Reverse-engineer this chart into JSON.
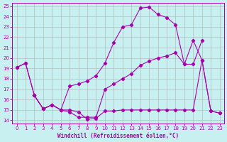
{
  "xlabel": "Windchill (Refroidissement éolien,°C)",
  "bg_color": "#c8f0f0",
  "line_color": "#aa00aa",
  "grid_color": "#b0b0b0",
  "xlim": [
    -0.5,
    23.5
  ],
  "ylim": [
    13.7,
    25.3
  ],
  "yticks": [
    14,
    15,
    16,
    17,
    18,
    19,
    20,
    21,
    22,
    23,
    24,
    25
  ],
  "xticks": [
    0,
    1,
    2,
    3,
    4,
    5,
    6,
    7,
    8,
    9,
    10,
    11,
    12,
    13,
    14,
    15,
    16,
    17,
    18,
    19,
    20,
    21,
    22,
    23
  ],
  "line1_x": [
    0,
    1,
    2,
    3,
    4,
    5,
    6,
    7,
    8,
    9,
    10,
    11,
    12,
    13,
    14,
    15,
    16,
    17,
    18,
    19,
    20,
    21,
    22,
    23
  ],
  "line1_y": [
    19.1,
    19.5,
    16.4,
    15.1,
    15.5,
    15.0,
    15.0,
    14.8,
    14.1,
    14.2,
    14.9,
    14.9,
    15.0,
    15.0,
    15.0,
    15.0,
    15.0,
    15.0,
    15.0,
    15.0,
    15.0,
    19.8,
    14.9,
    14.7
  ],
  "line2_x": [
    0,
    1,
    2,
    3,
    4,
    5,
    6,
    7,
    8,
    9,
    10,
    11,
    12,
    13,
    14,
    15,
    16,
    17,
    18,
    19,
    20,
    21,
    22,
    23
  ],
  "line2_y": [
    19.1,
    19.5,
    16.4,
    15.1,
    15.5,
    15.0,
    17.3,
    17.5,
    17.8,
    18.3,
    19.5,
    21.5,
    23.0,
    23.2,
    24.8,
    24.9,
    24.2,
    23.9,
    23.2,
    19.4,
    21.7,
    19.8,
    14.9,
    14.7
  ],
  "line3_x": [
    2,
    3,
    4,
    5,
    6,
    7,
    8,
    9,
    10,
    11,
    12,
    13,
    14,
    15,
    16,
    17,
    18,
    19,
    20,
    21
  ],
  "line3_y": [
    16.4,
    15.1,
    15.5,
    15.0,
    14.8,
    14.3,
    14.3,
    14.3,
    17.0,
    17.5,
    18.0,
    18.5,
    19.3,
    19.7,
    20.0,
    20.2,
    20.5,
    19.4,
    19.4,
    21.7
  ]
}
